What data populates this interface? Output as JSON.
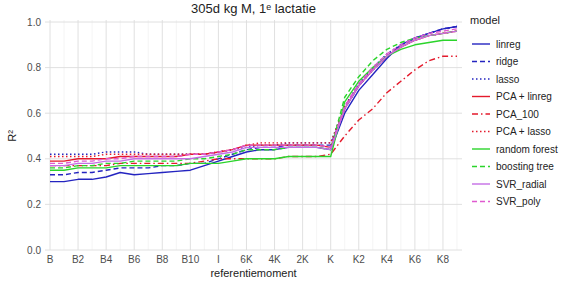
{
  "chart_data": {
    "type": "line",
    "title": "305d kg M, 1ᵉ lactatie",
    "x_label": "referentiemoment",
    "y_label": "R²",
    "legend_title": "model",
    "legend": "right",
    "grid": true,
    "categories": [
      "B",
      null,
      "B2",
      null,
      "B4",
      null,
      "B6",
      null,
      "B8",
      null,
      "B10",
      null,
      "I",
      null,
      "6K",
      null,
      "4K",
      null,
      "2K",
      null,
      "K",
      null,
      "K2",
      null,
      "K4",
      null,
      "K6",
      null,
      "K8",
      null
    ],
    "ylim": [
      0,
      1
    ],
    "yticks": [
      {
        "value": 0,
        "label": "0.0"
      },
      {
        "value": 0.2,
        "label": "0.2"
      },
      {
        "value": 0.4,
        "label": "0.4"
      },
      {
        "value": 0.6,
        "label": "0.6"
      },
      {
        "value": 0.8,
        "label": "0.8"
      },
      {
        "value": 1,
        "label": "1.0"
      }
    ],
    "series": [
      {
        "name": "linreg",
        "color": "#2424c0",
        "line_style": "solid",
        "values": [
          0.3,
          0.3,
          0.31,
          0.31,
          0.32,
          0.34,
          0.33,
          0.335,
          0.34,
          0.345,
          0.35,
          0.37,
          0.39,
          0.41,
          0.43,
          0.44,
          0.44,
          0.45,
          0.45,
          0.45,
          0.44,
          0.6,
          0.7,
          0.77,
          0.84,
          0.9,
          0.93,
          0.95,
          0.97,
          0.98
        ]
      },
      {
        "name": "ridge",
        "color": "#2424c0",
        "line_style": "dashed",
        "values": [
          0.33,
          0.33,
          0.34,
          0.34,
          0.35,
          0.36,
          0.36,
          0.36,
          0.37,
          0.37,
          0.38,
          0.38,
          0.4,
          0.42,
          0.44,
          0.45,
          0.45,
          0.46,
          0.46,
          0.46,
          0.46,
          0.62,
          0.72,
          0.79,
          0.85,
          0.9,
          0.93,
          0.95,
          0.97,
          0.98
        ]
      },
      {
        "name": "lasso",
        "color": "#2424c0",
        "line_style": "dotted",
        "values": [
          0.42,
          0.42,
          0.42,
          0.42,
          0.43,
          0.43,
          0.43,
          0.42,
          0.42,
          0.42,
          0.42,
          0.42,
          0.43,
          0.44,
          0.45,
          0.46,
          0.46,
          0.47,
          0.47,
          0.47,
          0.47,
          0.63,
          0.73,
          0.8,
          0.86,
          0.9,
          0.93,
          0.95,
          0.97,
          0.98
        ]
      },
      {
        "name": "PCA + linreg",
        "color": "#e41a2c",
        "line_style": "solid",
        "values": [
          0.39,
          0.39,
          0.4,
          0.4,
          0.4,
          0.41,
          0.41,
          0.41,
          0.41,
          0.41,
          0.42,
          0.42,
          0.43,
          0.44,
          0.46,
          0.46,
          0.46,
          0.46,
          0.46,
          0.46,
          0.45,
          0.62,
          0.72,
          0.79,
          0.85,
          0.89,
          0.92,
          0.94,
          0.95,
          0.96
        ]
      },
      {
        "name": "PCA_100",
        "color": "#e41a2c",
        "line_style": "dashdot",
        "values": [
          0.37,
          0.37,
          0.37,
          0.37,
          0.37,
          0.38,
          0.38,
          0.38,
          0.38,
          0.38,
          0.38,
          0.39,
          0.4,
          0.4,
          0.4,
          0.4,
          0.4,
          0.41,
          0.41,
          0.41,
          0.42,
          0.5,
          0.57,
          0.62,
          0.69,
          0.74,
          0.79,
          0.83,
          0.85,
          0.85
        ]
      },
      {
        "name": "PCA + lasso",
        "color": "#e41a2c",
        "line_style": "dotted",
        "values": [
          0.41,
          0.41,
          0.41,
          0.41,
          0.42,
          0.42,
          0.42,
          0.42,
          0.42,
          0.42,
          0.42,
          0.42,
          0.43,
          0.44,
          0.46,
          0.47,
          0.47,
          0.47,
          0.47,
          0.47,
          0.47,
          0.63,
          0.72,
          0.79,
          0.85,
          0.89,
          0.92,
          0.94,
          0.95,
          0.96
        ]
      },
      {
        "name": "random forest",
        "color": "#2bd42b",
        "line_style": "solid",
        "values": [
          0.35,
          0.35,
          0.36,
          0.36,
          0.36,
          0.37,
          0.37,
          0.37,
          0.37,
          0.37,
          0.38,
          0.38,
          0.38,
          0.39,
          0.4,
          0.4,
          0.4,
          0.41,
          0.41,
          0.41,
          0.41,
          0.65,
          0.74,
          0.8,
          0.85,
          0.88,
          0.9,
          0.91,
          0.92,
          0.92
        ]
      },
      {
        "name": "boosting tree",
        "color": "#2bd42b",
        "line_style": "dashed",
        "values": [
          0.36,
          0.36,
          0.37,
          0.37,
          0.38,
          0.38,
          0.39,
          0.39,
          0.39,
          0.39,
          0.4,
          0.4,
          0.41,
          0.42,
          0.44,
          0.44,
          0.44,
          0.45,
          0.45,
          0.45,
          0.44,
          0.67,
          0.76,
          0.83,
          0.88,
          0.91,
          0.93,
          0.94,
          0.95,
          0.96
        ]
      },
      {
        "name": "SVR_radial",
        "color": "#c46ee6",
        "line_style": "solid",
        "values": [
          0.37,
          0.37,
          0.38,
          0.38,
          0.39,
          0.39,
          0.4,
          0.4,
          0.4,
          0.4,
          0.4,
          0.41,
          0.42,
          0.43,
          0.45,
          0.45,
          0.45,
          0.45,
          0.45,
          0.45,
          0.44,
          0.62,
          0.72,
          0.79,
          0.85,
          0.89,
          0.92,
          0.94,
          0.95,
          0.96
        ]
      },
      {
        "name": "SVR_poly",
        "color": "#e05ad0",
        "line_style": "dashed",
        "values": [
          0.38,
          0.38,
          0.39,
          0.39,
          0.4,
          0.4,
          0.41,
          0.41,
          0.41,
          0.41,
          0.42,
          0.42,
          0.43,
          0.44,
          0.46,
          0.46,
          0.46,
          0.46,
          0.46,
          0.46,
          0.45,
          0.63,
          0.73,
          0.8,
          0.86,
          0.9,
          0.93,
          0.95,
          0.96,
          0.97
        ]
      }
    ]
  }
}
